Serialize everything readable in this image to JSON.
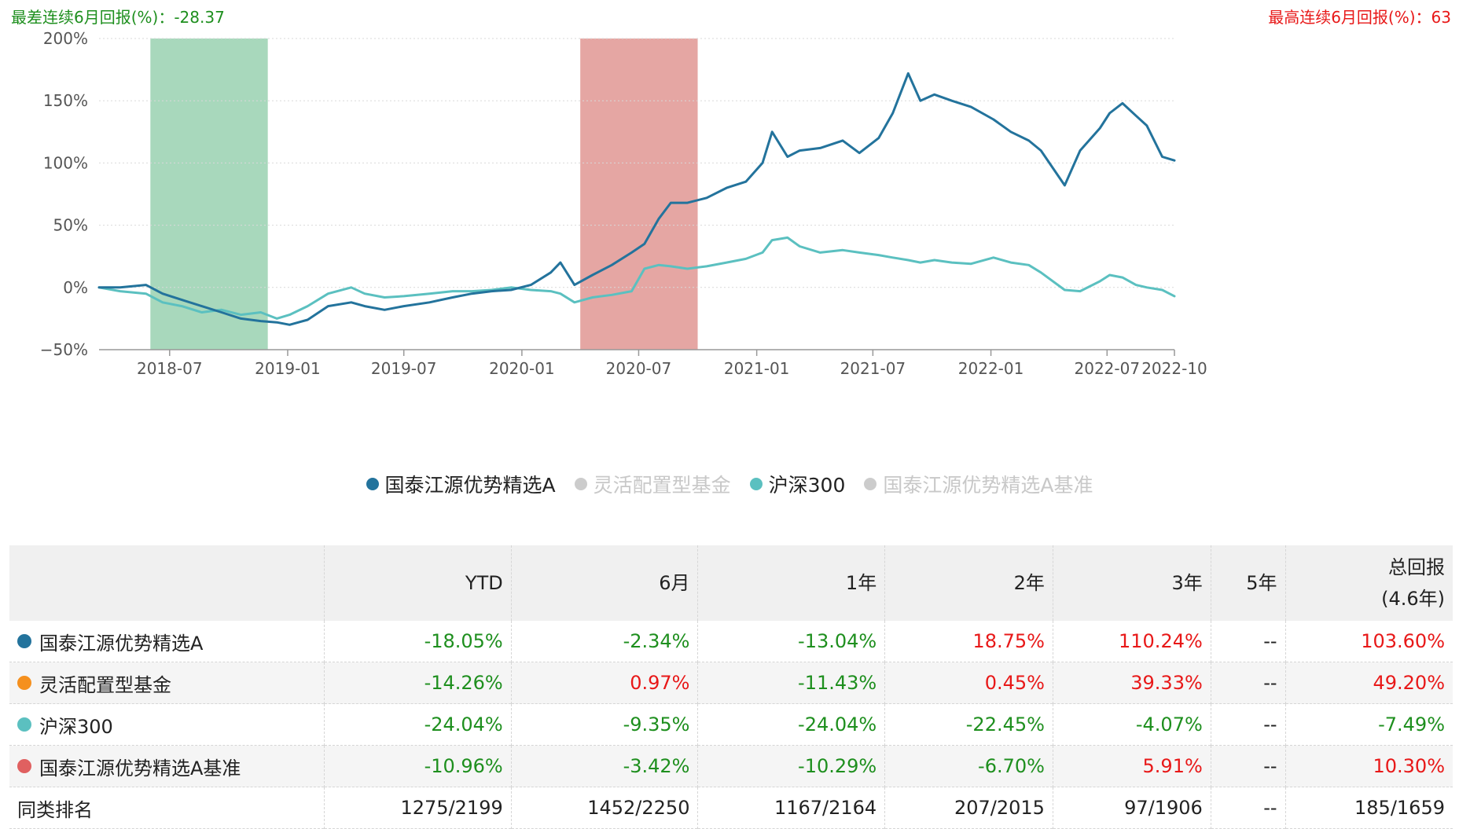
{
  "header": {
    "worst_label": "最差连续6月回报(%)：-28.37",
    "best_label": "最高连续6月回报(%)：63"
  },
  "colors": {
    "fund": "#23739c",
    "category": "#f5901e",
    "hs300": "#5bc0c0",
    "benchmark": "#e06060",
    "worst_band": "#a8d8bc",
    "best_band": "#e5a6a3",
    "legend_off": "#cccccc",
    "positive": "#e81818",
    "negative": "#1e8f1e"
  },
  "chart_data": {
    "type": "line",
    "title": "",
    "xlabel": "",
    "ylabel": "",
    "ylim": [
      -50,
      200
    ],
    "y_ticks": [
      -50,
      0,
      50,
      100,
      150,
      200
    ],
    "y_tick_labels": [
      "−50%",
      "0%",
      "50%",
      "100%",
      "150%",
      "200%"
    ],
    "x_range": [
      "2018-03-13",
      "2022-10-14"
    ],
    "x_ticks": [
      "2018-07",
      "2019-01",
      "2019-07",
      "2020-01",
      "2020-07",
      "2021-01",
      "2021-07",
      "2022-01",
      "2022-07",
      "2022-10"
    ],
    "grid": true,
    "shaded_periods": [
      {
        "kind": "worst",
        "start": "2018-06-01",
        "end": "2018-12-01"
      },
      {
        "kind": "best",
        "start": "2020-04-01",
        "end": "2020-10-01"
      }
    ],
    "series": [
      {
        "name": "国泰江源优势精选A",
        "x": [
          "2018-03-13",
          "2018-04-15",
          "2018-05-25",
          "2018-06-20",
          "2018-07-20",
          "2018-08-20",
          "2018-09-20",
          "2018-10-20",
          "2018-11-20",
          "2018-12-15",
          "2019-01-04",
          "2019-02-01",
          "2019-03-05",
          "2019-04-10",
          "2019-05-01",
          "2019-06-01",
          "2019-07-01",
          "2019-08-10",
          "2019-09-15",
          "2019-10-15",
          "2019-11-15",
          "2019-12-15",
          "2020-01-15",
          "2020-02-15",
          "2020-03-01",
          "2020-03-23",
          "2020-04-20",
          "2020-05-20",
          "2020-06-20",
          "2020-07-10",
          "2020-08-01",
          "2020-08-20",
          "2020-09-15",
          "2020-10-15",
          "2020-11-15",
          "2020-12-15",
          "2021-01-10",
          "2021-01-25",
          "2021-02-18",
          "2021-03-09",
          "2021-04-10",
          "2021-05-15",
          "2021-06-10",
          "2021-07-10",
          "2021-08-01",
          "2021-08-25",
          "2021-09-13",
          "2021-10-05",
          "2021-11-01",
          "2021-12-01",
          "2022-01-05",
          "2022-02-01",
          "2022-03-01",
          "2022-03-20",
          "2022-04-26",
          "2022-05-20",
          "2022-06-20",
          "2022-07-05",
          "2022-07-25",
          "2022-08-15",
          "2022-09-01",
          "2022-09-25",
          "2022-10-14"
        ],
        "values": [
          0,
          0,
          2,
          -5,
          -10,
          -15,
          -20,
          -25,
          -27,
          -28,
          -30,
          -26,
          -15,
          -12,
          -15,
          -18,
          -15,
          -12,
          -8,
          -5,
          -3,
          -2,
          2,
          12,
          20,
          2,
          10,
          18,
          28,
          35,
          55,
          68,
          68,
          72,
          80,
          85,
          100,
          125,
          105,
          110,
          112,
          118,
          108,
          120,
          140,
          172,
          150,
          155,
          150,
          145,
          135,
          125,
          118,
          110,
          82,
          110,
          128,
          140,
          148,
          138,
          130,
          105,
          102
        ]
      },
      {
        "name": "沪深300",
        "x": [
          "2018-03-13",
          "2018-04-15",
          "2018-05-25",
          "2018-06-20",
          "2018-07-20",
          "2018-08-20",
          "2018-09-20",
          "2018-10-20",
          "2018-11-20",
          "2018-12-15",
          "2019-01-04",
          "2019-02-01",
          "2019-03-05",
          "2019-04-10",
          "2019-05-01",
          "2019-06-01",
          "2019-07-01",
          "2019-08-10",
          "2019-09-15",
          "2019-10-15",
          "2019-11-15",
          "2019-12-15",
          "2020-01-15",
          "2020-02-15",
          "2020-03-01",
          "2020-03-23",
          "2020-04-20",
          "2020-05-20",
          "2020-06-20",
          "2020-07-10",
          "2020-08-01",
          "2020-08-20",
          "2020-09-15",
          "2020-10-15",
          "2020-11-15",
          "2020-12-15",
          "2021-01-10",
          "2021-01-25",
          "2021-02-18",
          "2021-03-09",
          "2021-04-10",
          "2021-05-15",
          "2021-06-10",
          "2021-07-10",
          "2021-08-01",
          "2021-08-25",
          "2021-09-13",
          "2021-10-05",
          "2021-11-01",
          "2021-12-01",
          "2022-01-05",
          "2022-02-01",
          "2022-03-01",
          "2022-03-20",
          "2022-04-26",
          "2022-05-20",
          "2022-06-20",
          "2022-07-05",
          "2022-07-25",
          "2022-08-15",
          "2022-09-01",
          "2022-09-25",
          "2022-10-14"
        ],
        "values": [
          0,
          -3,
          -5,
          -12,
          -15,
          -20,
          -18,
          -22,
          -20,
          -25,
          -22,
          -15,
          -5,
          0,
          -5,
          -8,
          -7,
          -5,
          -3,
          -3,
          -2,
          0,
          -2,
          -3,
          -5,
          -12,
          -8,
          -6,
          -3,
          15,
          18,
          17,
          15,
          17,
          20,
          23,
          28,
          38,
          40,
          33,
          28,
          30,
          28,
          26,
          24,
          22,
          20,
          22,
          20,
          19,
          24,
          20,
          18,
          12,
          -2,
          -3,
          5,
          10,
          8,
          2,
          0,
          -2,
          -7
        ]
      }
    ],
    "legend": {
      "placement": "bottom",
      "items": [
        {
          "label": "国泰江源优势精选A",
          "active": true
        },
        {
          "label": "灵活配置型基金",
          "active": false
        },
        {
          "label": "沪深300",
          "active": true
        },
        {
          "label": "国泰江源优势精选A基准",
          "active": false
        }
      ]
    }
  },
  "table": {
    "headers": [
      "YTD",
      "6月",
      "1年",
      "2年",
      "3年",
      "5年"
    ],
    "total_header_line1": "总回报",
    "total_header_line2": "(4.6年)",
    "rows": [
      {
        "name": "国泰江源优势精选A",
        "cells": [
          "-18.05%",
          "-2.34%",
          "-13.04%",
          "18.75%",
          "110.24%",
          "--",
          "103.60%"
        ]
      },
      {
        "name": "灵活配置型基金",
        "cells": [
          "-14.26%",
          "0.97%",
          "-11.43%",
          "0.45%",
          "39.33%",
          "--",
          "49.20%"
        ]
      },
      {
        "name": "沪深300",
        "cells": [
          "-24.04%",
          "-9.35%",
          "-24.04%",
          "-22.45%",
          "-4.07%",
          "--",
          "-7.49%"
        ]
      },
      {
        "name": "国泰江源优势精选A基准",
        "cells": [
          "-10.96%",
          "-3.42%",
          "-10.29%",
          "-6.70%",
          "5.91%",
          "--",
          "10.30%"
        ]
      }
    ],
    "rank": {
      "name": "同类排名",
      "cells": [
        "1275/2199",
        "1452/2250",
        "1167/2164",
        "207/2015",
        "97/1906",
        "--",
        "185/1659"
      ]
    }
  }
}
